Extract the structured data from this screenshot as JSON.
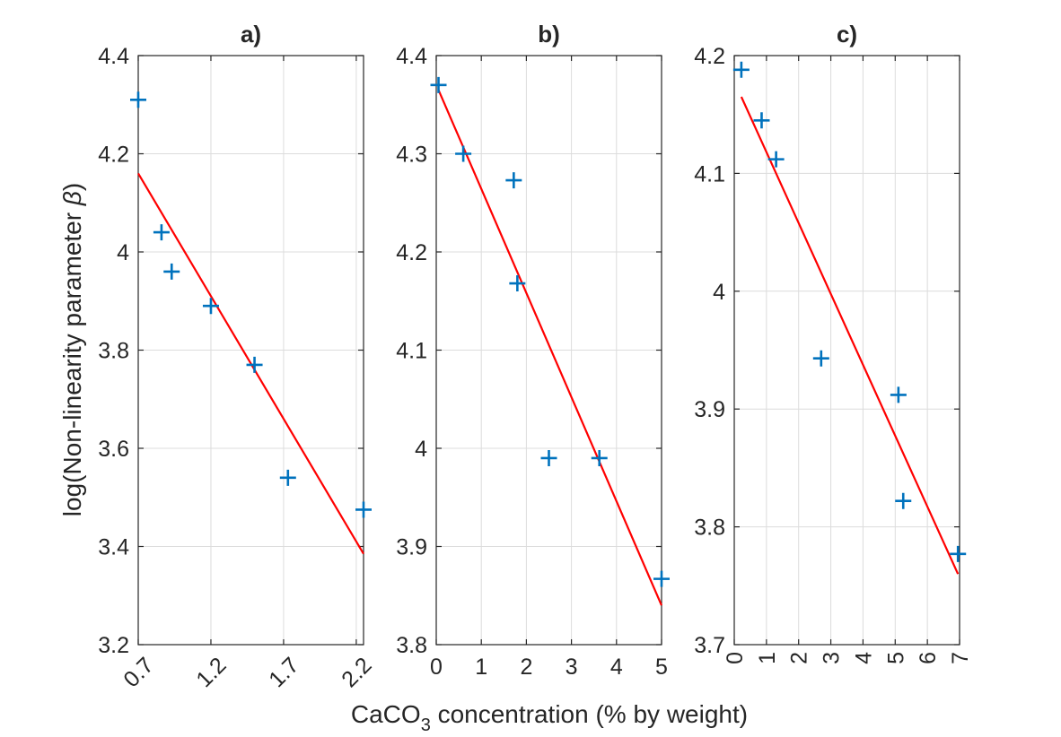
{
  "figure": {
    "ylabel_text": "log(Non-linearity parameter ",
    "ylabel_symbol": "β",
    "ylabel_close": ")",
    "xlabel_main": "CaCO",
    "xlabel_sub": "3",
    "xlabel_rest": " concentration (% by weight)"
  },
  "chart_data": [
    {
      "type": "scatter",
      "title": "a)",
      "x_range": [
        0.7,
        2.25
      ],
      "y_range": [
        3.2,
        4.4
      ],
      "x_ticks": [
        0.7,
        1.2,
        1.7,
        2.2
      ],
      "x_tick_labels": [
        "0.7",
        "1.2",
        "1.7",
        "2.2"
      ],
      "y_ticks": [
        3.2,
        3.4,
        3.6,
        3.8,
        4.0,
        4.2,
        4.4
      ],
      "y_tick_labels": [
        "3.2",
        "3.4",
        "3.6",
        "3.8",
        "4",
        "4.2",
        "4.4"
      ],
      "x_tick_rotation": "45",
      "grid": true,
      "points": [
        [
          0.7,
          4.31
        ],
        [
          0.86,
          4.04
        ],
        [
          0.93,
          3.96
        ],
        [
          1.2,
          3.89
        ],
        [
          1.5,
          3.77
        ],
        [
          1.73,
          3.54
        ],
        [
          2.25,
          3.475
        ]
      ],
      "fit_line": [
        [
          0.7,
          4.16
        ],
        [
          2.25,
          3.385
        ]
      ]
    },
    {
      "type": "scatter",
      "title": "b)",
      "x_range": [
        0,
        5
      ],
      "y_range": [
        3.8,
        4.4
      ],
      "x_ticks": [
        0,
        1,
        2,
        3,
        4,
        5
      ],
      "x_tick_labels": [
        "0",
        "1",
        "2",
        "3",
        "4",
        "5"
      ],
      "y_ticks": [
        3.8,
        3.9,
        4.0,
        4.1,
        4.2,
        4.3,
        4.4
      ],
      "y_tick_labels": [
        "3.8",
        "3.9",
        "4",
        "4.1",
        "4.2",
        "4.3",
        "4.4"
      ],
      "x_tick_rotation": "0",
      "grid": true,
      "points": [
        [
          0.05,
          4.37
        ],
        [
          0.6,
          4.3
        ],
        [
          1.72,
          4.273
        ],
        [
          1.8,
          4.168
        ],
        [
          2.5,
          3.99
        ],
        [
          3.62,
          3.99
        ],
        [
          5.0,
          3.867
        ]
      ],
      "fit_line": [
        [
          0.05,
          4.365
        ],
        [
          5.0,
          3.84
        ]
      ]
    },
    {
      "type": "scatter",
      "title": "c)",
      "x_range": [
        0,
        7
      ],
      "y_range": [
        3.7,
        4.2
      ],
      "x_ticks": [
        0,
        1,
        2,
        3,
        4,
        5,
        6,
        7
      ],
      "x_tick_labels": [
        "0",
        "1",
        "2",
        "3",
        "4",
        "5",
        "6",
        "7"
      ],
      "y_ticks": [
        3.7,
        3.8,
        3.9,
        4.0,
        4.1,
        4.2
      ],
      "y_tick_labels": [
        "3.7",
        "3.8",
        "3.9",
        "4",
        "4.1",
        "4.2"
      ],
      "x_tick_rotation": "90",
      "grid": true,
      "points": [
        [
          0.22,
          4.188
        ],
        [
          0.85,
          4.145
        ],
        [
          1.3,
          4.112
        ],
        [
          2.7,
          3.943
        ],
        [
          5.1,
          3.912
        ],
        [
          5.25,
          3.822
        ],
        [
          6.95,
          3.777
        ]
      ],
      "fit_line": [
        [
          0.22,
          4.165
        ],
        [
          6.95,
          3.76
        ]
      ]
    }
  ]
}
